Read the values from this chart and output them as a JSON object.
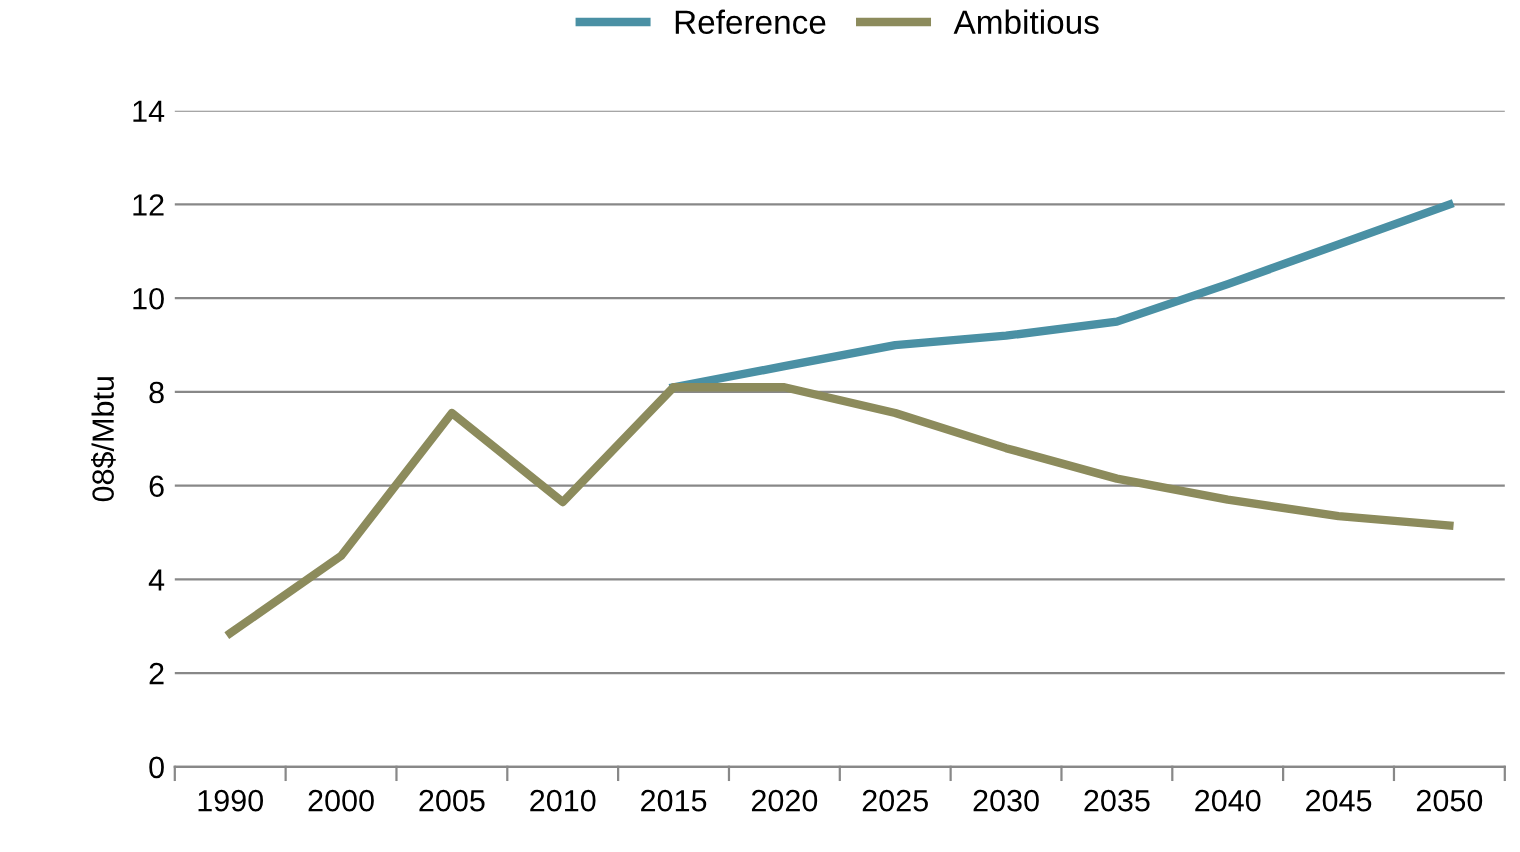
{
  "chart_data": {
    "type": "line",
    "ylabel": "08$/Mbtu",
    "categories": [
      "1990",
      "2000",
      "2005",
      "2010",
      "2015",
      "2020",
      "2025",
      "2030",
      "2035",
      "2040",
      "2045",
      "2050"
    ],
    "series": [
      {
        "name": "Reference",
        "color": "#4a90a4",
        "values": [
          null,
          null,
          null,
          null,
          8.1,
          8.55,
          9.0,
          9.2,
          9.5,
          10.3,
          11.15,
          12.0
        ]
      },
      {
        "name": "Ambitious",
        "color": "#8c8b5c",
        "values": [
          2.85,
          4.5,
          7.55,
          5.65,
          8.1,
          8.1,
          7.55,
          6.8,
          6.15,
          5.7,
          5.35,
          5.15
        ]
      }
    ],
    "ylim": [
      0,
      14
    ],
    "yticks": [
      0,
      2,
      4,
      6,
      8,
      10,
      12,
      14
    ],
    "grid": "y",
    "legend": "top",
    "marker": "none",
    "line_style": "solid"
  }
}
